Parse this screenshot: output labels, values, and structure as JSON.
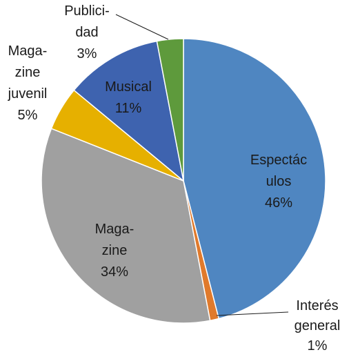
{
  "chart_data": {
    "type": "pie",
    "legend": "none",
    "slices": [
      {
        "name": "Espectáculos",
        "value": 46,
        "color": "#4F86C1",
        "label_lines": [
          "Espectác",
          "ulos",
          "46%"
        ]
      },
      {
        "name": "Interés general",
        "value": 1,
        "color": "#E07A2C",
        "label_lines": [
          "Interés",
          "general",
          "1%"
        ]
      },
      {
        "name": "Magazine",
        "value": 34,
        "color": "#A0A0A0",
        "label_lines": [
          "Maga-",
          "zine",
          "34%"
        ]
      },
      {
        "name": "Magazine juvenil",
        "value": 5,
        "color": "#E6B000",
        "label_lines": [
          "Maga-",
          "zine",
          "juvenil",
          "5%"
        ]
      },
      {
        "name": "Musical",
        "value": 11,
        "color": "#3E63AF",
        "label_lines": [
          "Musical",
          "11%"
        ]
      },
      {
        "name": "Publicidad",
        "value": 3,
        "color": "#5E9A3C",
        "label_lines": [
          "Publici-",
          "dad",
          "3%"
        ]
      }
    ]
  }
}
